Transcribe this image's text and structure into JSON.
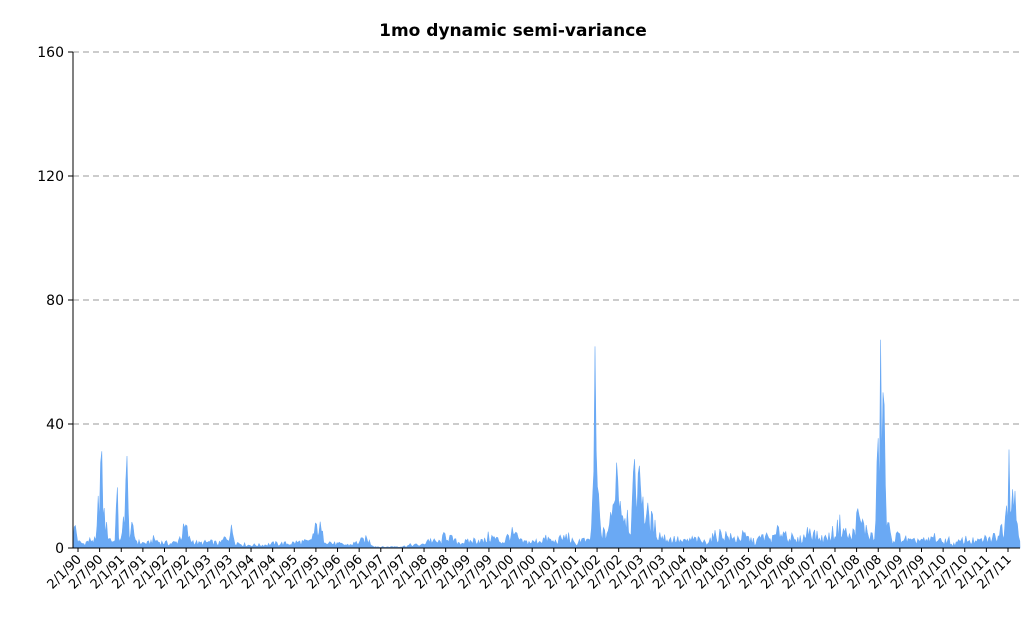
{
  "chart_data": {
    "type": "area",
    "title": "1mo dynamic semi-variance",
    "xlabel": "",
    "ylabel": "",
    "ylim": [
      0,
      160
    ],
    "yticks": [
      0,
      40,
      80,
      120,
      160
    ],
    "grid": true,
    "legend": "none",
    "color": "#6aa9f4",
    "x_tick_labels": [
      "2/1/90",
      "2/7/90",
      "2/1/91",
      "2/7/91",
      "2/1/92",
      "2/7/92",
      "2/1/93",
      "2/7/93",
      "2/1/94",
      "2/7/94",
      "2/1/95",
      "2/7/95",
      "2/1/96",
      "2/7/96",
      "2/1/97",
      "2/7/97",
      "2/1/98",
      "2/7/98",
      "2/1/99",
      "2/7/99",
      "2/1/00",
      "2/7/00",
      "2/1/01",
      "2/7/01",
      "2/1/02",
      "2/7/02",
      "2/1/03",
      "2/7/03",
      "2/1/04",
      "2/7/04",
      "2/1/05",
      "2/7/05",
      "2/1/06",
      "2/7/06",
      "2/1/07",
      "2/7/07",
      "2/1/08",
      "2/7/08",
      "2/1/09",
      "2/7/09",
      "2/1/10",
      "2/7/10",
      "2/1/11",
      "2/7/11"
    ],
    "x_range": [
      "1990-01-02",
      "2011-12-30"
    ],
    "points": [
      [
        "1990-01-02",
        3
      ],
      [
        "1990-01-20",
        8
      ],
      [
        "1990-02-15",
        2
      ],
      [
        "1990-04-01",
        1.5
      ],
      [
        "1990-06-15",
        3
      ],
      [
        "1990-07-20",
        2
      ],
      [
        "1990-08-05",
        14
      ],
      [
        "1990-08-20",
        28
      ],
      [
        "1990-09-05",
        22
      ],
      [
        "1990-09-25",
        10
      ],
      [
        "1990-10-15",
        6
      ],
      [
        "1990-11-15",
        3
      ],
      [
        "1990-12-20",
        2
      ],
      [
        "1991-01-10",
        17
      ],
      [
        "1991-01-25",
        4
      ],
      [
        "1991-02-20",
        2
      ],
      [
        "1991-03-15",
        15
      ],
      [
        "1991-04-01",
        29
      ],
      [
        "1991-04-20",
        5
      ],
      [
        "1991-05-20",
        6
      ],
      [
        "1991-07-01",
        2
      ],
      [
        "1991-10-01",
        1.5
      ],
      [
        "1991-11-20",
        3
      ],
      [
        "1992-01-10",
        2
      ],
      [
        "1992-04-01",
        1.5
      ],
      [
        "1992-06-01",
        2
      ],
      [
        "1992-08-15",
        7
      ],
      [
        "1992-09-15",
        3
      ],
      [
        "1992-12-01",
        1.5
      ],
      [
        "1993-03-01",
        2
      ],
      [
        "1993-06-01",
        1.5
      ],
      [
        "1993-09-15",
        6
      ],
      [
        "1993-10-15",
        2
      ],
      [
        "1994-01-15",
        1
      ],
      [
        "1994-06-01",
        1
      ],
      [
        "1994-09-01",
        1.5
      ],
      [
        "1995-01-01",
        1.5
      ],
      [
        "1995-04-01",
        2
      ],
      [
        "1995-07-01",
        2
      ],
      [
        "1995-09-15",
        8
      ],
      [
        "1995-10-20",
        4
      ],
      [
        "1996-01-10",
        1.5
      ],
      [
        "1996-06-01",
        1
      ],
      [
        "1996-11-01",
        3
      ],
      [
        "1997-01-01",
        0.5
      ],
      [
        "1997-04-01",
        0.3
      ],
      [
        "1997-07-01",
        0.5
      ],
      [
        "1997-09-01",
        0.5
      ],
      [
        "1997-11-01",
        1
      ],
      [
        "1998-01-01",
        1
      ],
      [
        "1998-02-15",
        1
      ],
      [
        "1998-04-01",
        3
      ],
      [
        "1998-06-01",
        2
      ],
      [
        "1998-07-20",
        2
      ],
      [
        "1998-09-01",
        5
      ],
      [
        "1998-10-15",
        3
      ],
      [
        "1998-12-01",
        2
      ],
      [
        "1999-03-01",
        2
      ],
      [
        "1999-06-01",
        3
      ],
      [
        "1999-07-15",
        2
      ],
      [
        "1999-09-01",
        4
      ],
      [
        "2000-01-01",
        2
      ],
      [
        "2000-03-01",
        5
      ],
      [
        "2000-04-15",
        4
      ],
      [
        "2000-06-01",
        2
      ],
      [
        "2000-09-15",
        2
      ],
      [
        "2000-12-01",
        3
      ],
      [
        "2001-01-15",
        3
      ],
      [
        "2001-03-01",
        2
      ],
      [
        "2001-07-01",
        4
      ],
      [
        "2001-09-01",
        1
      ],
      [
        "2001-10-15",
        3
      ],
      [
        "2001-12-15",
        2
      ],
      [
        "2002-01-15",
        4
      ],
      [
        "2002-02-05",
        32
      ],
      [
        "2002-02-15",
        46
      ],
      [
        "2002-03-01",
        25
      ],
      [
        "2002-04-01",
        6
      ],
      [
        "2002-05-15",
        4
      ],
      [
        "2002-06-15",
        8
      ],
      [
        "2002-07-15",
        10
      ],
      [
        "2002-08-01",
        29
      ],
      [
        "2002-08-15",
        28
      ],
      [
        "2002-09-01",
        25
      ],
      [
        "2002-10-01",
        14
      ],
      [
        "2002-11-15",
        12
      ],
      [
        "2002-12-15",
        8
      ],
      [
        "2003-01-20",
        22
      ],
      [
        "2003-02-10",
        29
      ],
      [
        "2003-02-25",
        19
      ],
      [
        "2003-03-15",
        26
      ],
      [
        "2003-04-10",
        12
      ],
      [
        "2003-05-20",
        10
      ],
      [
        "2003-07-01",
        7
      ],
      [
        "2003-09-01",
        4
      ],
      [
        "2003-11-01",
        3
      ],
      [
        "2004-01-01",
        3
      ],
      [
        "2004-03-01",
        2
      ],
      [
        "2004-06-01",
        3
      ],
      [
        "2004-09-01",
        2
      ],
      [
        "2004-12-01",
        4
      ],
      [
        "2005-02-01",
        5
      ],
      [
        "2005-05-01",
        3
      ],
      [
        "2005-08-01",
        4
      ],
      [
        "2005-11-01",
        2
      ],
      [
        "2006-01-15",
        4
      ],
      [
        "2006-04-01",
        3
      ],
      [
        "2006-06-01",
        6
      ],
      [
        "2006-08-01",
        5
      ],
      [
        "2006-10-15",
        2
      ],
      [
        "2007-01-01",
        4
      ],
      [
        "2007-02-15",
        7
      ],
      [
        "2007-04-01",
        4
      ],
      [
        "2007-06-01",
        3
      ],
      [
        "2007-08-01",
        4
      ],
      [
        "2007-11-01",
        8
      ],
      [
        "2007-12-15",
        5
      ],
      [
        "2008-02-01",
        3
      ],
      [
        "2008-03-15",
        10
      ],
      [
        "2008-04-15",
        9
      ],
      [
        "2008-06-01",
        6
      ],
      [
        "2008-08-15",
        3
      ],
      [
        "2008-10-15",
        58
      ],
      [
        "2008-11-01",
        42
      ],
      [
        "2008-11-20",
        10
      ],
      [
        "2009-01-01",
        3
      ],
      [
        "2009-03-01",
        4
      ],
      [
        "2009-05-01",
        3
      ],
      [
        "2009-07-01",
        2
      ],
      [
        "2009-09-01",
        3
      ],
      [
        "2009-11-01",
        2
      ],
      [
        "2010-01-01",
        4
      ],
      [
        "2010-03-01",
        2
      ],
      [
        "2010-05-01",
        3
      ],
      [
        "2010-06-01",
        1
      ],
      [
        "2010-08-01",
        2
      ],
      [
        "2010-10-01",
        3
      ],
      [
        "2011-01-01",
        2
      ],
      [
        "2011-03-01",
        3
      ],
      [
        "2011-05-01",
        3
      ],
      [
        "2011-07-01",
        5
      ],
      [
        "2011-08-15",
        8
      ],
      [
        "2011-10-01",
        30
      ],
      [
        "2011-12-30",
        2
      ]
    ]
  }
}
